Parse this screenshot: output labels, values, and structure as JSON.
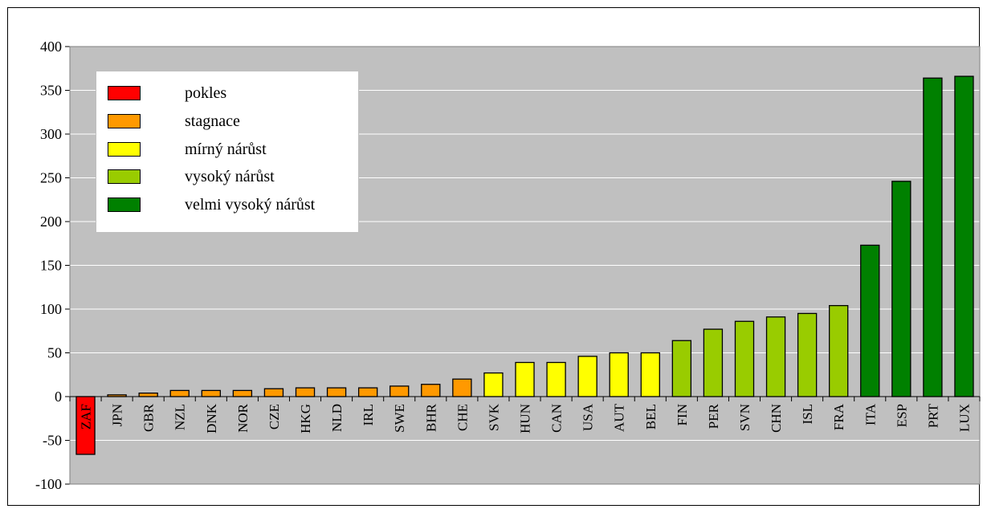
{
  "chart_data": {
    "type": "bar",
    "categories": [
      "ZAF",
      "JPN",
      "GBR",
      "NZL",
      "DNK",
      "NOR",
      "CZE",
      "HKG",
      "NLD",
      "IRL",
      "SWE",
      "BHR",
      "CHE",
      "SVK",
      "HUN",
      "CAN",
      "USA",
      "AUT",
      "BEL",
      "FIN",
      "PER",
      "SVN",
      "CHN",
      "ISL",
      "FRA",
      "ITA",
      "ESP",
      "PRT",
      "LUX"
    ],
    "values": [
      -66,
      2,
      4,
      7,
      7,
      7,
      9,
      10,
      10,
      10,
      12,
      14,
      20,
      27,
      39,
      39,
      46,
      50,
      50,
      64,
      77,
      86,
      91,
      95,
      104,
      173,
      246,
      364,
      366
    ],
    "groups": [
      0,
      1,
      1,
      1,
      1,
      1,
      1,
      1,
      1,
      1,
      1,
      1,
      1,
      2,
      2,
      2,
      2,
      2,
      2,
      3,
      3,
      3,
      3,
      3,
      3,
      4,
      4,
      4,
      4
    ],
    "ylim": [
      -100,
      400
    ],
    "yticks": [
      -100,
      -50,
      0,
      50,
      100,
      150,
      200,
      250,
      300,
      350,
      400
    ],
    "grid": true,
    "legend_position": "top-left",
    "legend": [
      {
        "label": "pokles",
        "color": "#ff0000"
      },
      {
        "label": "stagnace",
        "color": "#ff9900"
      },
      {
        "label": "mírný nárůst",
        "color": "#ffff00"
      },
      {
        "label": "vysoký nárůst",
        "color": "#99cc00"
      },
      {
        "label": "velmi vysoký nárůst",
        "color": "#008000"
      }
    ],
    "plot_background": "#c0c0c0"
  }
}
